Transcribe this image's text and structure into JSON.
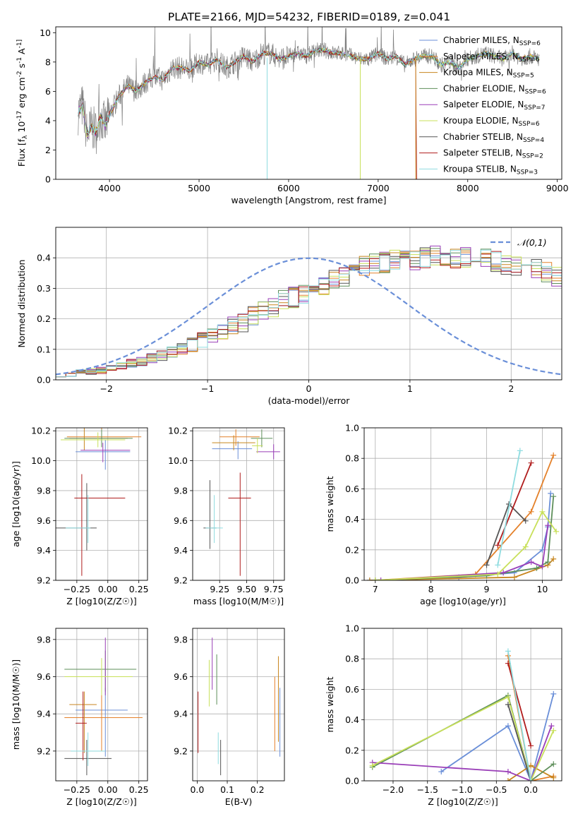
{
  "title": "PLATE=2166, MJD=54232, FIBERID=0189, z=0.041",
  "colors": [
    "#6a8fd8",
    "#e4812a",
    "#c8861f",
    "#5e8f5a",
    "#9a3fb8",
    "#c8e05a",
    "#555555",
    "#b01c1c",
    "#8fdce0"
  ],
  "legend": [
    "Chabrier MILES, N_SSP=6",
    "Salpeter MILES, N_SSP=6",
    "Kroupa MILES, N_SSP=5",
    "Chabrier ELODIE, N_SSP=6",
    "Salpeter ELODIE, N_SSP=7",
    "Kroupa ELODIE, N_SSP=6",
    "Chabrier STELIB, N_SSP=4",
    "Salpeter STELIB, N_SSP=2",
    "Kroupa STELIB, N_SSP=3"
  ],
  "chart_data": [
    {
      "id": "spectrum",
      "type": "line",
      "xlabel": "wavelength [Angstrom, rest frame]",
      "ylabel": "Flux [f_λ 10^-17 erg cm^-2 s^-1 A^-1]",
      "xlim": [
        3400,
        9050
      ],
      "ylim": [
        0,
        10.4
      ],
      "xticks": [
        4000,
        5000,
        6000,
        7000,
        8000,
        9000
      ],
      "yticks": [
        0,
        2,
        4,
        6,
        8,
        10
      ],
      "data_series": {
        "name": "data",
        "x": [
          3650,
          3700,
          3750,
          3800,
          3850,
          3900,
          3950,
          4000,
          4100,
          4200,
          4300,
          4400,
          4500,
          4600,
          4700,
          4800,
          4900,
          5000,
          5100,
          5200,
          5300,
          5400,
          5500,
          5600,
          5700,
          5800,
          5900,
          6000,
          6100,
          6200,
          6300,
          6400,
          6500,
          6600,
          6700,
          6800,
          6900,
          7000,
          7100,
          7200,
          7300,
          7400,
          7500,
          7600,
          7700,
          7800,
          7900,
          8000,
          8100,
          8200,
          8300,
          8400,
          8500,
          8600,
          8700,
          8800
        ],
        "y": [
          4.6,
          5.0,
          3.0,
          3.6,
          3.2,
          4.4,
          3.6,
          4.4,
          5.6,
          6.4,
          6.0,
          6.6,
          7.0,
          6.8,
          7.6,
          7.6,
          7.4,
          8.0,
          7.8,
          8.2,
          7.6,
          8.0,
          8.4,
          8.0,
          8.6,
          8.6,
          8.2,
          8.4,
          8.6,
          8.4,
          8.8,
          8.8,
          8.6,
          8.6,
          8.4,
          8.2,
          8.2,
          8.6,
          8.2,
          8.4,
          7.8,
          8.2,
          8.4,
          8.4,
          7.8,
          8.0,
          7.6,
          8.2,
          8.4,
          8.6,
          8.4,
          8.2,
          8.6,
          8.2,
          8.4,
          8.2
        ]
      },
      "model_cutoff": [
        0,
        0,
        0,
        0,
        0,
        0,
        0,
        7420,
        0
      ]
    },
    {
      "id": "residuals",
      "type": "line",
      "xlabel": "(data-model)/error",
      "ylabel": "Normed distribution",
      "xlim": [
        -2.5,
        2.5
      ],
      "ylim": [
        0,
        0.5
      ],
      "xticks": [
        -2,
        -1,
        0,
        1,
        2
      ],
      "yticks": [
        0.0,
        0.1,
        0.2,
        0.3,
        0.4
      ],
      "grid": true,
      "reference": {
        "name": "𝒩(0,1)",
        "mean": 0,
        "sigma": 1
      },
      "bin_width": 0.1,
      "base_hist": [
        0.016,
        0.02,
        0.023,
        0.027,
        0.03,
        0.04,
        0.045,
        0.055,
        0.06,
        0.07,
        0.08,
        0.09,
        0.1,
        0.115,
        0.13,
        0.14,
        0.16,
        0.175,
        0.19,
        0.21,
        0.225,
        0.24,
        0.26,
        0.27,
        0.28,
        0.3,
        0.31,
        0.33,
        0.34,
        0.36,
        0.37,
        0.38,
        0.385,
        0.39,
        0.4,
        0.395,
        0.4,
        0.41,
        0.4,
        0.395,
        0.4,
        0.39,
        0.395,
        0.39,
        0.38,
        0.37,
        0.37,
        0.36,
        0.35,
        0.34,
        0.33,
        0.32,
        0.31,
        0.29,
        0.28,
        0.26,
        0.245,
        0.23,
        0.21,
        0.195,
        0.18,
        0.165,
        0.15,
        0.135,
        0.12,
        0.105,
        0.09,
        0.08,
        0.07,
        0.06,
        0.05,
        0.045,
        0.04,
        0.035,
        0.03,
        0.03,
        0.028,
        0.026,
        0.025,
        0.024,
        0.023,
        0.022,
        0.021,
        0.02,
        0.02,
        0.02,
        0.02,
        0.02,
        0.02,
        0.02,
        0.02,
        0.02,
        0.02,
        0.02,
        0.02,
        0.02,
        0.02,
        0.02,
        0.02,
        0.02
      ]
    },
    {
      "id": "age-vs-Z",
      "type": "scatter",
      "xlabel": "Z [log10(Z/Z☉)]",
      "ylabel": "age [log10(age/yr)]",
      "xlim": [
        -0.42,
        0.32
      ],
      "ylim": [
        9.2,
        10.22
      ],
      "xticks": [
        -0.25,
        0.0,
        0.25
      ],
      "yticks": [
        9.2,
        9.4,
        9.6,
        9.8,
        10.0,
        10.2
      ],
      "points": [
        {
          "x": -0.02,
          "y": 10.06,
          "xerr": [
            0.24,
            0.2
          ],
          "yerr": [
            0.12,
            0.08
          ]
        },
        {
          "x": -0.05,
          "y": 10.16,
          "xerr": [
            0.28,
            0.32
          ],
          "yerr": [
            0.06,
            0.06
          ]
        },
        {
          "x": -0.19,
          "y": 10.15,
          "xerr": [
            0.12,
            0.35
          ],
          "yerr": [
            0.08,
            0.07
          ]
        },
        {
          "x": -0.05,
          "y": 10.15,
          "xerr": [
            0.3,
            0.25
          ],
          "yerr": [
            0.06,
            0.06
          ]
        },
        {
          "x": -0.04,
          "y": 10.07,
          "xerr": [
            0.18,
            0.22
          ],
          "yerr": [
            0.08,
            0.05
          ]
        },
        {
          "x": -0.08,
          "y": 10.14,
          "xerr": [
            0.3,
            0.22
          ],
          "yerr": [
            0.05,
            0.05
          ]
        },
        {
          "x": -0.17,
          "y": 9.55,
          "xerr": [
            0.25,
            0.08
          ],
          "yerr": [
            0.15,
            0.3
          ]
        },
        {
          "x": -0.21,
          "y": 9.75,
          "xerr": [
            0.06,
            0.35
          ],
          "yerr": [
            0.52,
            0.16
          ]
        },
        {
          "x": -0.16,
          "y": 9.55,
          "xerr": [
            0.18,
            0.02
          ],
          "yerr": [
            0.1,
            0.22
          ]
        }
      ]
    },
    {
      "id": "age-vs-mass",
      "type": "scatter",
      "xlabel": "mass [log10(M/M☉)]",
      "ylabel": "",
      "xlim": [
        9.0,
        9.85
      ],
      "ylim": [
        9.2,
        10.22
      ],
      "xticks": [
        9.25,
        9.5,
        9.75
      ],
      "yticks": [
        9.2,
        9.4,
        9.6,
        9.8,
        10.0,
        10.2
      ],
      "points": [
        {
          "x": 9.42,
          "y": 10.08,
          "xerr": [
            0.24,
            0.13
          ],
          "yerr": [
            0.07,
            0.05
          ]
        },
        {
          "x": 9.4,
          "y": 10.16,
          "xerr": [
            0.15,
            0.22
          ],
          "yerr": [
            0.06,
            0.05
          ]
        },
        {
          "x": 9.38,
          "y": 10.12,
          "xerr": [
            0.2,
            0.2
          ],
          "yerr": [
            0.05,
            0.05
          ]
        },
        {
          "x": 9.64,
          "y": 10.15,
          "xerr": [
            0.1,
            0.1
          ],
          "yerr": [
            0.06,
            0.06
          ]
        },
        {
          "x": 9.75,
          "y": 10.06,
          "xerr": [
            0.16,
            0.06
          ],
          "yerr": [
            0.05,
            0.05
          ]
        },
        {
          "x": 9.6,
          "y": 10.1,
          "xerr": [
            0.05,
            0.05
          ],
          "yerr": [
            0.05,
            0.05
          ]
        },
        {
          "x": 9.16,
          "y": 9.55,
          "xerr": [
            0.06,
            0.06
          ],
          "yerr": [
            0.14,
            0.32
          ]
        },
        {
          "x": 9.44,
          "y": 9.75,
          "xerr": [
            0.11,
            0.1
          ],
          "yerr": [
            0.52,
            0.17
          ]
        },
        {
          "x": 9.2,
          "y": 9.55,
          "xerr": [
            0.08,
            0.08
          ],
          "yerr": [
            0.1,
            0.22
          ]
        }
      ]
    },
    {
      "id": "weight-vs-age",
      "type": "line",
      "xlabel": "age [log10(age/yr)]",
      "ylabel": "mass weight",
      "xlim": [
        6.8,
        10.35
      ],
      "ylim": [
        0,
        1.0
      ],
      "xticks": [
        7,
        8,
        9,
        10
      ],
      "yticks": [
        0.0,
        0.2,
        0.4,
        0.6,
        0.8,
        1.0
      ],
      "series": [
        {
          "x": [
            6.9,
            8.5,
            9.5,
            10.0,
            10.1,
            10.15
          ],
          "y": [
            0.0,
            0.02,
            0.05,
            0.2,
            0.35,
            0.57
          ]
        },
        {
          "x": [
            7.0,
            8.8,
            9.8,
            10.2
          ],
          "y": [
            0.0,
            0.04,
            0.45,
            0.82
          ]
        },
        {
          "x": [
            6.9,
            9.5,
            10.1,
            10.2
          ],
          "y": [
            0.0,
            0.02,
            0.1,
            0.14
          ]
        },
        {
          "x": [
            7.0,
            9.0,
            9.9,
            10.1,
            10.2
          ],
          "y": [
            0.0,
            0.03,
            0.08,
            0.12,
            0.55
          ]
        },
        {
          "x": [
            7.1,
            9.3,
            9.8,
            10.0,
            10.1
          ],
          "y": [
            0.0,
            0.05,
            0.12,
            0.09,
            0.36
          ]
        },
        {
          "x": [
            7.0,
            9.2,
            9.7,
            10.0,
            10.25
          ],
          "y": [
            0.0,
            0.04,
            0.22,
            0.45,
            0.32
          ]
        },
        {
          "x": [
            9.0,
            9.4,
            9.7
          ],
          "y": [
            0.1,
            0.5,
            0.39
          ]
        },
        {
          "x": [
            9.2,
            9.8
          ],
          "y": [
            0.23,
            0.77
          ]
        },
        {
          "x": [
            9.2,
            9.6
          ],
          "y": [
            0.1,
            0.85
          ]
        }
      ]
    },
    {
      "id": "mass-vs-Z",
      "type": "scatter",
      "xlabel": "Z [log10(Z/Z☉)]",
      "ylabel": "mass [log10(M/M☉)]",
      "xlim": [
        -0.42,
        0.32
      ],
      "ylim": [
        9.04,
        9.86
      ],
      "xticks": [
        -0.25,
        0.0,
        0.25
      ],
      "yticks": [
        9.2,
        9.4,
        9.6,
        9.8
      ],
      "points": [
        {
          "x": -0.02,
          "y": 9.42,
          "xerr": [
            0.24,
            0.18
          ],
          "yerr": [
            0.25,
            0.12
          ]
        },
        {
          "x": -0.05,
          "y": 9.38,
          "xerr": [
            0.3,
            0.33
          ],
          "yerr": [
            0.18,
            0.2
          ]
        },
        {
          "x": -0.19,
          "y": 9.45,
          "xerr": [
            0.12,
            0.1
          ],
          "yerr": [
            0.26,
            0.07
          ]
        },
        {
          "x": -0.02,
          "y": 9.64,
          "xerr": [
            0.33,
            0.25
          ],
          "yerr": [
            0.12,
            0.1
          ]
        },
        {
          "x": -0.02,
          "y": 9.6,
          "xerr": [
            0.18,
            0.2
          ],
          "yerr": [
            0.1,
            0.21
          ]
        },
        {
          "x": -0.05,
          "y": 9.6,
          "xerr": [
            0.3,
            0.25
          ],
          "yerr": [
            0.1,
            0.1
          ]
        },
        {
          "x": -0.17,
          "y": 9.16,
          "xerr": [
            0.18,
            0.2
          ],
          "yerr": [
            0.09,
            0.1
          ]
        },
        {
          "x": -0.2,
          "y": 9.35,
          "xerr": [
            0.06,
            0.03
          ],
          "yerr": [
            0.2,
            0.17
          ]
        },
        {
          "x": -0.16,
          "y": 9.2,
          "xerr": [
            0.14,
            0.14
          ],
          "yerr": [
            0.08,
            0.1
          ]
        }
      ]
    },
    {
      "id": "mass-vs-ebv",
      "type": "scatter",
      "xlabel": "E(B-V)",
      "ylabel": "",
      "xlim": [
        -0.015,
        0.29
      ],
      "ylim": [
        9.04,
        9.86
      ],
      "xticks": [
        0.0,
        0.1,
        0.2
      ],
      "yticks": [
        9.2,
        9.4,
        9.6,
        9.8
      ],
      "points": [
        {
          "x": 0.275,
          "y": 9.36,
          "xerr": [
            0,
            0
          ],
          "yerr": [
            0.19,
            0.18
          ]
        },
        {
          "x": 0.258,
          "y": 9.4,
          "xerr": [
            0,
            0
          ],
          "yerr": [
            0.2,
            0.2
          ]
        },
        {
          "x": 0.27,
          "y": 9.45,
          "xerr": [
            0,
            0
          ],
          "yerr": [
            0.2,
            0.26
          ]
        },
        {
          "x": 0.065,
          "y": 9.59,
          "xerr": [
            0,
            0
          ],
          "yerr": [
            0.14,
            0.13
          ]
        },
        {
          "x": 0.05,
          "y": 9.67,
          "xerr": [
            0,
            0
          ],
          "yerr": [
            0.14,
            0.14
          ]
        },
        {
          "x": 0.04,
          "y": 9.57,
          "xerr": [
            0,
            0
          ],
          "yerr": [
            0.13,
            0.12
          ]
        },
        {
          "x": 0.078,
          "y": 9.16,
          "xerr": [
            0,
            0
          ],
          "yerr": [
            0.09,
            0.1
          ]
        },
        {
          "x": 0.003,
          "y": 9.35,
          "xerr": [
            0,
            0
          ],
          "yerr": [
            0.16,
            0.17
          ]
        },
        {
          "x": 0.07,
          "y": 9.21,
          "xerr": [
            0,
            0
          ],
          "yerr": [
            0.08,
            0.09
          ]
        }
      ]
    },
    {
      "id": "weight-vs-Z",
      "type": "line",
      "xlabel": "Z [log10(Z/Z☉)]",
      "ylabel": "mass weight",
      "xlim": [
        -2.42,
        0.45
      ],
      "ylim": [
        0,
        1.0
      ],
      "xticks": [
        -2.0,
        -1.5,
        -1.0,
        -0.5,
        0.0
      ],
      "yticks": [
        0.0,
        0.2,
        0.4,
        0.6,
        0.8,
        1.0
      ],
      "series": [
        {
          "x": [
            -1.3,
            -0.33,
            0.0,
            0.33
          ],
          "y": [
            0.06,
            0.36,
            0.0,
            0.57
          ]
        },
        {
          "x": [
            -0.33,
            0.0,
            0.33
          ],
          "y": [
            0.82,
            0.0,
            0.03
          ]
        },
        {
          "x": [
            -0.33,
            0.0,
            0.33
          ],
          "y": [
            0.0,
            0.1,
            0.02
          ]
        },
        {
          "x": [
            -2.3,
            -0.33,
            0.0,
            0.33
          ],
          "y": [
            0.09,
            0.56,
            0.0,
            0.11
          ]
        },
        {
          "x": [
            -2.3,
            -0.33,
            0.0,
            0.3
          ],
          "y": [
            0.12,
            0.06,
            0.0,
            0.36
          ]
        },
        {
          "x": [
            -2.3,
            -0.33,
            0.0,
            0.33
          ],
          "y": [
            0.1,
            0.55,
            0.0,
            0.33
          ]
        },
        {
          "x": [
            -0.33,
            0.0
          ],
          "y": [
            0.5,
            0.0
          ]
        },
        {
          "x": [
            -0.33,
            0.0
          ],
          "y": [
            0.77,
            0.23
          ]
        },
        {
          "x": [
            -0.33,
            0.0
          ],
          "y": [
            0.85,
            0.0
          ]
        }
      ]
    }
  ]
}
